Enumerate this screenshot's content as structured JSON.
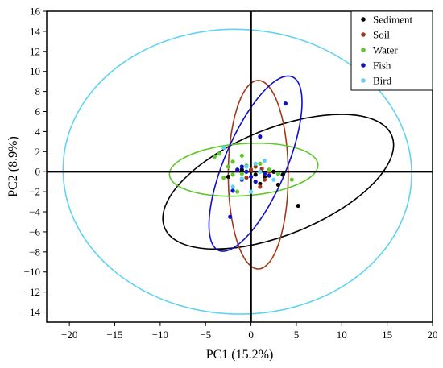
{
  "chart_data": {
    "type": "scatter",
    "xlabel": "PC1 (15.2%)",
    "ylabel": "PC2 (8.9%)",
    "xlim": [
      -22.5,
      20
    ],
    "ylim": [
      -15,
      16
    ],
    "xticks": [
      -20,
      -15,
      -10,
      -5,
      0,
      5,
      10,
      15,
      20
    ],
    "yticks": [
      -14,
      -12,
      -10,
      -8,
      -6,
      -4,
      -2,
      0,
      2,
      4,
      6,
      8,
      10,
      12,
      14,
      16
    ],
    "grid": false,
    "zero_lines": true,
    "legend_position": "top-right",
    "series": [
      {
        "name": "Sediment",
        "color": "#000000",
        "points": [
          [
            -2.5,
            -0.5
          ],
          [
            -1.0,
            0.2
          ],
          [
            0.5,
            -0.3
          ],
          [
            1.5,
            -0.5
          ],
          [
            2.5,
            0.0
          ],
          [
            3.0,
            -1.3
          ],
          [
            3.5,
            -0.3
          ],
          [
            5.2,
            -3.4
          ],
          [
            1.0,
            -1.2
          ]
        ],
        "ellipse": {
          "cx": 3.0,
          "cy": -1.0,
          "rx": 13.5,
          "ry": 5.3,
          "angle": -22
        }
      },
      {
        "name": "Soil",
        "color": "#a0391a",
        "points": [
          [
            0.0,
            0.2
          ],
          [
            0.5,
            0.5
          ],
          [
            1.2,
            0.3
          ],
          [
            1.0,
            -1.5
          ],
          [
            -0.5,
            -0.6
          ],
          [
            2.0,
            0.0
          ],
          [
            1.5,
            -0.8
          ]
        ],
        "ellipse": {
          "cx": 0.8,
          "cy": -0.3,
          "rx": 3.3,
          "ry": 9.4,
          "angle": 0
        }
      },
      {
        "name": "Water",
        "color": "#5ec829",
        "points": [
          [
            -4.0,
            1.5
          ],
          [
            -3.5,
            1.8
          ],
          [
            -2.0,
            1.0
          ],
          [
            -1.0,
            1.6
          ],
          [
            -0.5,
            0.6
          ],
          [
            -3.0,
            -0.6
          ],
          [
            -2.0,
            -0.3
          ],
          [
            -1.5,
            -2.0
          ],
          [
            1.0,
            0.8
          ],
          [
            2.0,
            0.2
          ],
          [
            3.0,
            -0.2
          ],
          [
            4.5,
            -0.8
          ],
          [
            -2.5,
            0.5
          ],
          [
            -1.0,
            -0.2
          ]
        ],
        "ellipse": {
          "cx": -0.8,
          "cy": 0.2,
          "rx": 8.2,
          "ry": 2.6,
          "angle": -4
        }
      },
      {
        "name": "Fish",
        "color": "#1010c8",
        "points": [
          [
            -2.0,
            -1.9
          ],
          [
            -1.5,
            0.2
          ],
          [
            -1.0,
            0.5
          ],
          [
            -0.5,
            0.0
          ],
          [
            0.0,
            -0.5
          ],
          [
            1.0,
            3.5
          ],
          [
            1.5,
            -0.2
          ],
          [
            2.0,
            -0.4
          ],
          [
            3.8,
            6.8
          ],
          [
            -2.3,
            -4.5
          ],
          [
            0.5,
            -1.0
          ],
          [
            -1.0,
            -0.8
          ]
        ],
        "ellipse": {
          "cx": 0.5,
          "cy": 0.8,
          "rx": 3.4,
          "ry": 9.4,
          "angle": 23
        }
      },
      {
        "name": "Bird",
        "color": "#5fd3f3",
        "points": [
          [
            -3.0,
            2.4
          ],
          [
            -1.0,
            -0.7
          ],
          [
            0.5,
            0.8
          ],
          [
            1.5,
            1.1
          ],
          [
            0.0,
            -2.0
          ],
          [
            -2.0,
            -1.5
          ],
          [
            1.0,
            0.0
          ],
          [
            2.5,
            -0.8
          ],
          [
            -0.5,
            0.5
          ]
        ],
        "ellipse": {
          "cx": -1.5,
          "cy": 0.0,
          "rx": 19.2,
          "ry": 14.2,
          "angle": 2
        }
      }
    ]
  }
}
